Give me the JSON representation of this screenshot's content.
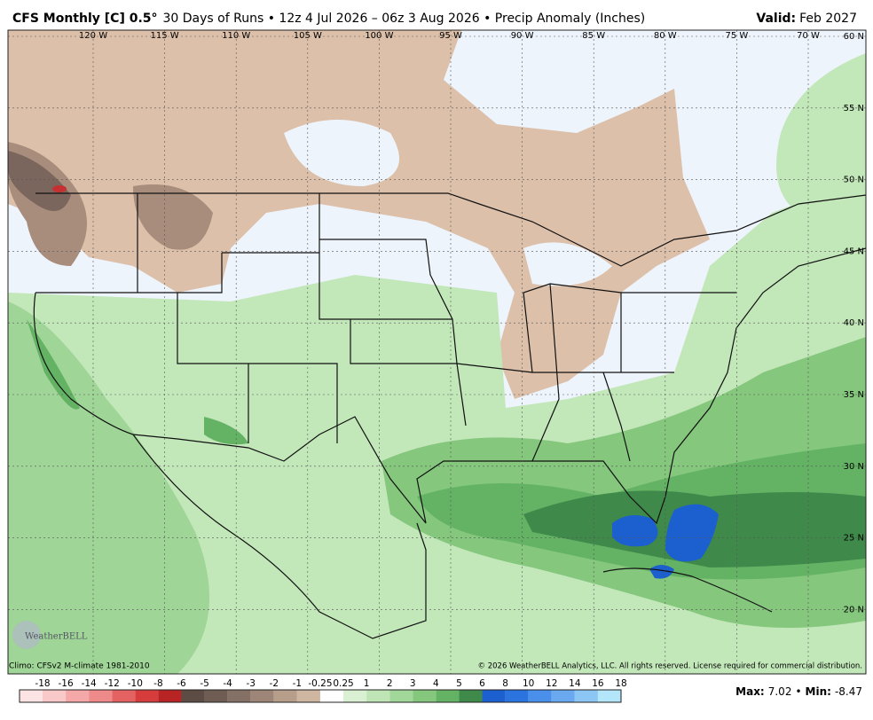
{
  "header": {
    "title_model": "CFS Monthly [C] 0.5°",
    "title_rest": "30 Days of Runs • 12z 4 Jul 2026 – 06z 3 Aug 2026 • Precip Anomaly (Inches)",
    "valid_label": "Valid:",
    "valid_value": "Feb 2027"
  },
  "map": {
    "lon_labels": [
      "120 W",
      "115 W",
      "110 W",
      "105 W",
      "100 W",
      "95 W",
      "90 W",
      "85 W",
      "80 W",
      "75 W",
      "70 W"
    ],
    "lat_labels": [
      "60 N",
      "55 N",
      "50 N",
      "45 N",
      "40 N",
      "35 N",
      "30 N",
      "25 N",
      "20 N"
    ],
    "logo": "WeatherBELL"
  },
  "footer": {
    "climo": "Climo: CFSv2 M-climate 1981-2010",
    "copyright": "© 2026 WeatherBELL Analytics, LLC. All rights reserved. License required for commercial distribution."
  },
  "colorbar": {
    "labels": [
      -18,
      -16,
      -14,
      -12,
      -10,
      -8,
      -6,
      -5,
      -4,
      -3,
      -2,
      -1,
      -0.25,
      0.25,
      1,
      2,
      3,
      4,
      5,
      6,
      8,
      10,
      12,
      14,
      16,
      18
    ],
    "colors": [
      "#fde4e4",
      "#f9c8c8",
      "#f4a8a8",
      "#ee8a8a",
      "#e46262",
      "#d63c3c",
      "#b82424",
      "#5c4c44",
      "#6f5d53",
      "#857065",
      "#9d8677",
      "#b69e8b",
      "#cfb6a1",
      "#ffffff",
      "#d9f0d3",
      "#bfe5b6",
      "#a2d79a",
      "#84c77d",
      "#64b364",
      "#3f8a4a",
      "#1c5fcf",
      "#2b74df",
      "#4a8fe9",
      "#6aa9ef",
      "#8cc6f4",
      "#b3e6f9"
    ]
  },
  "stats": {
    "max_label": "Max:",
    "max": 7.02,
    "min_label": "Min:",
    "min": -8.47
  }
}
